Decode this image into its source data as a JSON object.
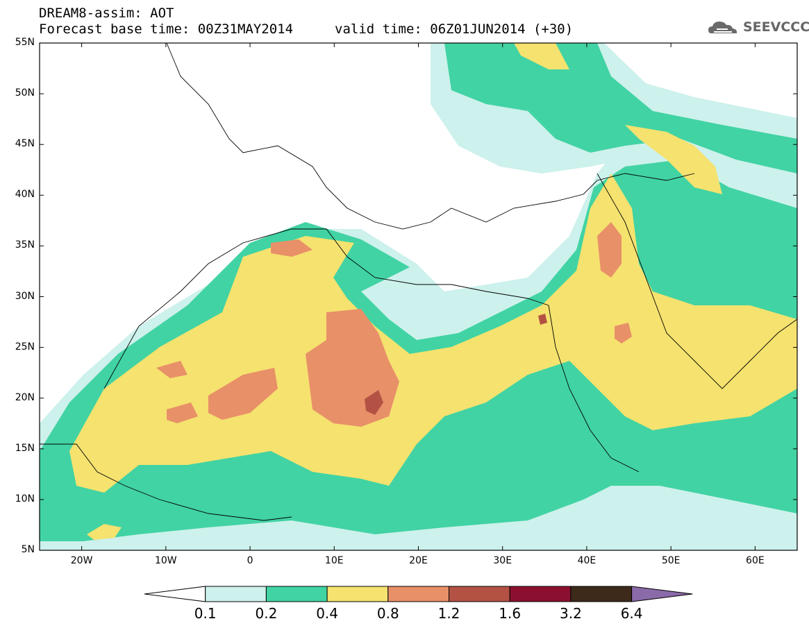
{
  "header": {
    "title_line1": "DREAM8-assim: AOT",
    "title_line2": "Forecast base time: 00Z31MAY2014",
    "valid_text": "valid time: 06Z01JUN2014 (+30)",
    "logo_text": "SEEVCCC",
    "logo_icon": "cloud-logo-icon"
  },
  "map": {
    "lat_labels": [
      "55N",
      "50N",
      "45N",
      "40N",
      "35N",
      "30N",
      "25N",
      "20N",
      "15N",
      "10N",
      "5N"
    ],
    "lon_labels": [
      "20W",
      "10W",
      "0",
      "10E",
      "20E",
      "30E",
      "40E",
      "50E",
      "60E"
    ],
    "lat_range": [
      5,
      55
    ],
    "lon_range": [
      -25,
      65
    ]
  },
  "colorbar": {
    "levels": [
      "0.1",
      "0.2",
      "0.4",
      "0.8",
      "1.2",
      "1.6",
      "3.2",
      "6.4"
    ],
    "colors": [
      "#cdf1ec",
      "#41d3a3",
      "#f5e26f",
      "#e89068",
      "#b35244",
      "#8b1030",
      "#3d2a1a"
    ],
    "over_color": "#8a6aa8",
    "under_color": "#ffffff"
  }
}
